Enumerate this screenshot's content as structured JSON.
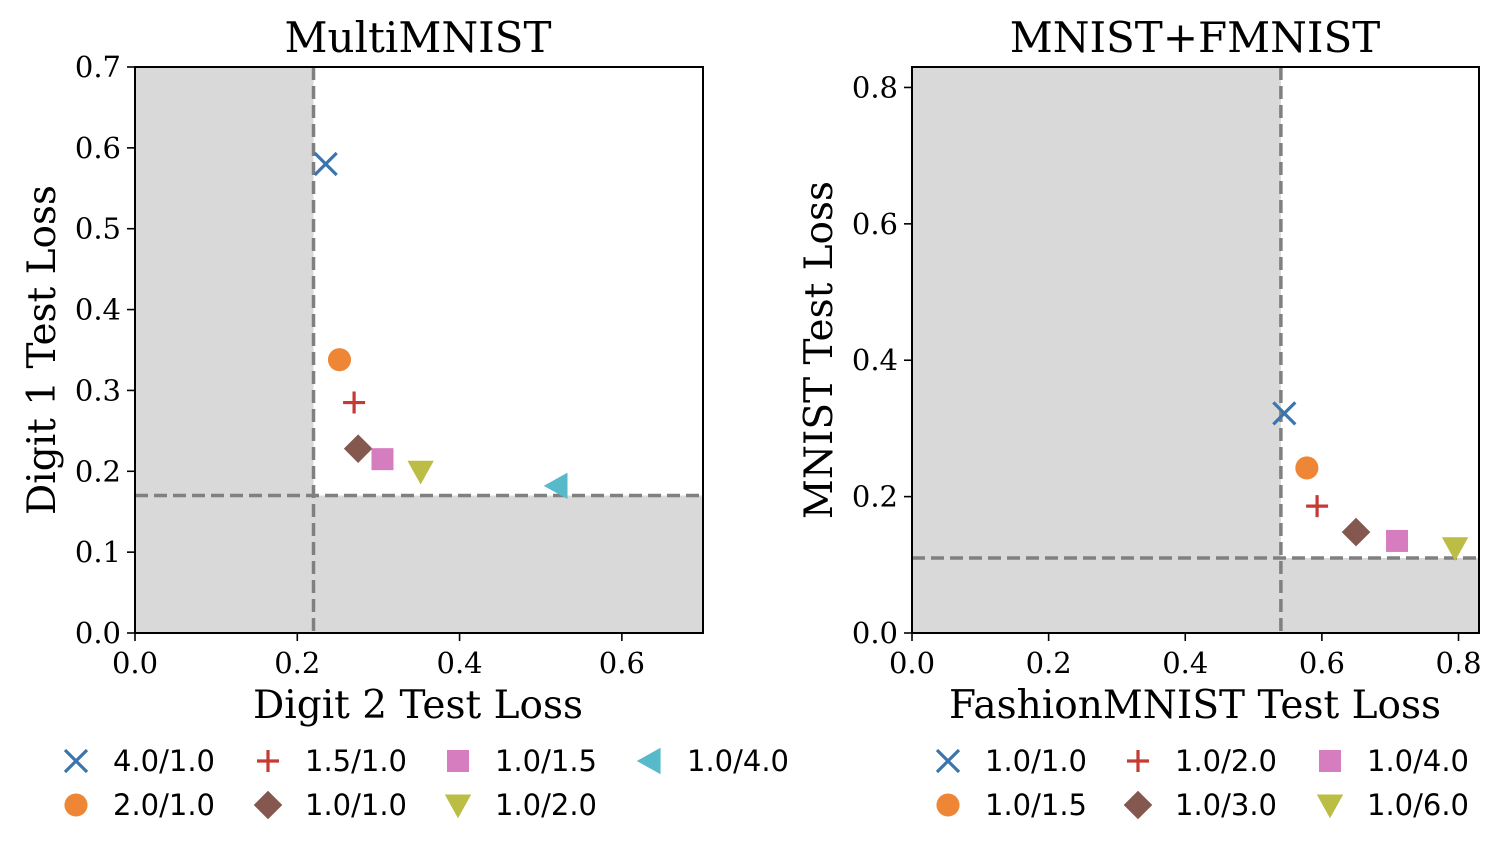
{
  "colors": {
    "shade": "#d9d9d9",
    "guide": "#808080",
    "blue": "#3b75af",
    "orange": "#ef8636",
    "red": "#c53a32",
    "pink": "#d57dbe",
    "brown": "#84584e",
    "olive": "#bcbd45",
    "cyan": "#56bacb"
  },
  "chart_data": [
    {
      "type": "scatter",
      "title": "MultiMNIST",
      "xlabel": "Digit 2 Test Loss",
      "ylabel": "Digit 1 Test Loss",
      "xlim": [
        0,
        0.7
      ],
      "ylim": [
        0,
        0.7
      ],
      "xticks": [
        "0.0",
        "0.2",
        "0.4",
        "0.6"
      ],
      "yticks": [
        "0.0",
        "0.1",
        "0.2",
        "0.3",
        "0.4",
        "0.5",
        "0.6",
        "0.7"
      ],
      "grid": false,
      "reference_lines": {
        "x": 0.22,
        "y": 0.17
      },
      "legend_placement": "below",
      "series": [
        {
          "name": "4.0/1.0",
          "marker": "x",
          "color": "blue",
          "x": 0.235,
          "y": 0.58
        },
        {
          "name": "2.0/1.0",
          "marker": "circle",
          "color": "orange",
          "x": 0.252,
          "y": 0.338
        },
        {
          "name": "1.5/1.0",
          "marker": "plus",
          "color": "red",
          "x": 0.27,
          "y": 0.285
        },
        {
          "name": "1.0/1.0",
          "marker": "diamond",
          "color": "brown",
          "x": 0.275,
          "y": 0.228
        },
        {
          "name": "1.0/1.5",
          "marker": "square",
          "color": "pink",
          "x": 0.305,
          "y": 0.215
        },
        {
          "name": "1.0/2.0",
          "marker": "triangle-down",
          "color": "olive",
          "x": 0.352,
          "y": 0.2
        },
        {
          "name": "1.0/4.0",
          "marker": "triangle-left",
          "color": "cyan",
          "x": 0.52,
          "y": 0.182
        }
      ]
    },
    {
      "type": "scatter",
      "title": "MNIST+FMNIST",
      "xlabel": "FashionMNIST Test Loss",
      "ylabel": "MNIST Test Loss",
      "xlim": [
        0,
        0.83
      ],
      "ylim": [
        0,
        0.83
      ],
      "xticks": [
        "0.0",
        "0.2",
        "0.4",
        "0.6",
        "0.8"
      ],
      "yticks": [
        "0.0",
        "0.2",
        "0.4",
        "0.6",
        "0.8"
      ],
      "grid": false,
      "reference_lines": {
        "x": 0.54,
        "y": 0.11
      },
      "legend_placement": "below",
      "series": [
        {
          "name": "1.0/1.0",
          "marker": "x",
          "color": "blue",
          "x": 0.545,
          "y": 0.322
        },
        {
          "name": "1.0/1.5",
          "marker": "circle",
          "color": "orange",
          "x": 0.578,
          "y": 0.242
        },
        {
          "name": "1.0/2.0",
          "marker": "plus",
          "color": "red",
          "x": 0.593,
          "y": 0.186
        },
        {
          "name": "1.0/3.0",
          "marker": "diamond",
          "color": "brown",
          "x": 0.65,
          "y": 0.148
        },
        {
          "name": "1.0/4.0",
          "marker": "square",
          "color": "pink",
          "x": 0.71,
          "y": 0.135
        },
        {
          "name": "1.0/6.0",
          "marker": "triangle-down",
          "color": "olive",
          "x": 0.795,
          "y": 0.125
        }
      ]
    }
  ]
}
